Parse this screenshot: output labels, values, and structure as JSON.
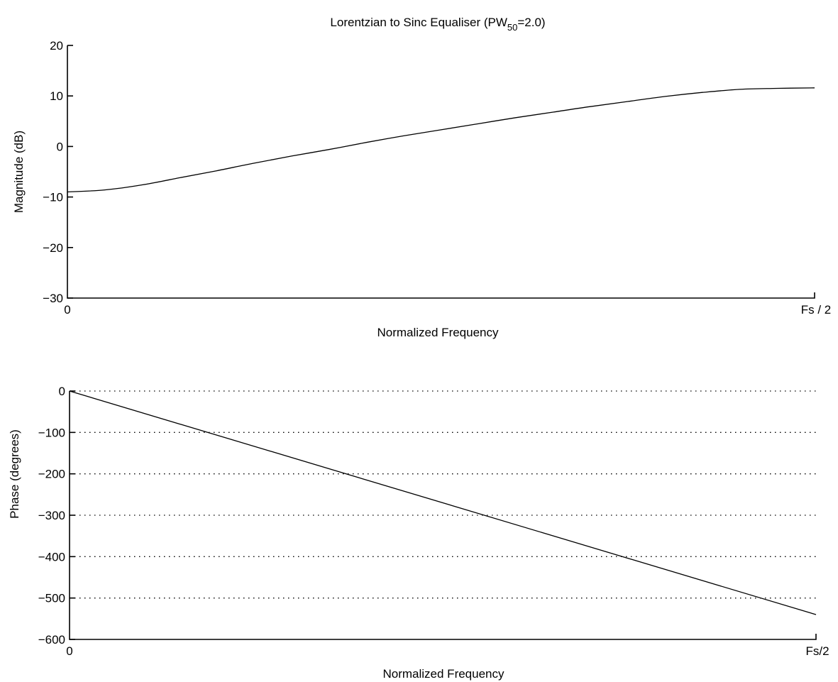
{
  "chart_data": [
    {
      "type": "line",
      "title": "Lorentzian to Sinc Equaliser (PW",
      "title_subscript": "50",
      "title_suffix": "=2.0)",
      "xlabel": "Normalized Frequency",
      "ylabel": "Magnitude (dB)",
      "xlim": [
        0,
        1
      ],
      "ylim": [
        -30,
        20
      ],
      "x_ticks": [
        {
          "value": 0,
          "label": "0"
        },
        {
          "value": 1,
          "label": "Fs / 2"
        }
      ],
      "y_ticks": [
        {
          "value": 20,
          "label": "20"
        },
        {
          "value": 10,
          "label": "10"
        },
        {
          "value": 0,
          "label": "0"
        },
        {
          "value": -10,
          "label": "−10"
        },
        {
          "value": -20,
          "label": "−20"
        },
        {
          "value": -30,
          "label": "−30"
        }
      ],
      "grid": false,
      "series": [
        {
          "x": [
            0,
            0.05,
            0.1,
            0.15,
            0.2,
            0.25,
            0.3,
            0.35,
            0.4,
            0.45,
            0.5,
            0.55,
            0.6,
            0.65,
            0.7,
            0.75,
            0.8,
            0.85,
            0.9,
            0.95,
            1.0
          ],
          "values": [
            -9.0,
            -8.6,
            -7.6,
            -6.2,
            -4.8,
            -3.3,
            -1.9,
            -0.6,
            0.8,
            2.1,
            3.3,
            4.5,
            5.7,
            6.8,
            7.9,
            8.9,
            9.9,
            10.7,
            11.3,
            11.5,
            11.6
          ]
        }
      ]
    },
    {
      "type": "line",
      "title": "",
      "xlabel": "Normalized Frequency",
      "ylabel": "Phase (degrees)",
      "xlim": [
        0,
        1
      ],
      "ylim": [
        -600,
        0
      ],
      "x_ticks": [
        {
          "value": 0,
          "label": "0"
        },
        {
          "value": 1,
          "label": "Fs/2"
        }
      ],
      "y_ticks": [
        {
          "value": 0,
          "label": "0"
        },
        {
          "value": -100,
          "label": "−100"
        },
        {
          "value": -200,
          "label": "−200"
        },
        {
          "value": -300,
          "label": "−300"
        },
        {
          "value": -400,
          "label": "−400"
        },
        {
          "value": -500,
          "label": "−500"
        },
        {
          "value": -600,
          "label": "−600"
        }
      ],
      "grid": true,
      "grid_style": "dotted horizontal",
      "series": [
        {
          "x": [
            0,
            1
          ],
          "values": [
            0,
            -540
          ]
        }
      ]
    }
  ]
}
